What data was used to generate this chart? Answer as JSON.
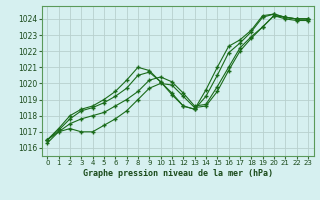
{
  "background_color": "#d6f0f0",
  "grid_color": "#b8d0ce",
  "line_color": "#1a6b1a",
  "title": "Graphe pression niveau de la mer (hPa)",
  "xlim": [
    -0.5,
    23.5
  ],
  "ylim": [
    1015.5,
    1024.8
  ],
  "yticks": [
    1016,
    1017,
    1018,
    1019,
    1020,
    1021,
    1022,
    1023,
    1024
  ],
  "xticks": [
    0,
    1,
    2,
    3,
    4,
    5,
    6,
    7,
    8,
    9,
    10,
    11,
    12,
    13,
    14,
    15,
    16,
    17,
    18,
    19,
    20,
    21,
    22,
    23
  ],
  "series1_x": [
    0,
    1,
    2,
    3,
    4,
    5,
    6,
    7,
    8,
    9,
    10,
    11,
    12,
    13,
    14,
    15,
    16,
    17,
    18,
    19,
    20,
    21,
    22,
    23
  ],
  "series1_y": [
    1016.3,
    1017.0,
    1017.2,
    1017.0,
    1017.0,
    1017.4,
    1017.8,
    1018.3,
    1019.0,
    1019.7,
    1020.0,
    1019.9,
    1019.2,
    1018.5,
    1018.6,
    1019.5,
    1020.8,
    1022.0,
    1022.8,
    1023.5,
    1024.2,
    1024.0,
    1023.9,
    1023.9
  ],
  "series2_x": [
    0,
    2,
    3,
    4,
    5,
    6,
    7,
    8,
    9,
    10,
    11,
    12,
    13,
    14,
    15,
    16,
    17,
    18,
    19,
    20,
    21,
    22,
    23
  ],
  "series2_y": [
    1016.5,
    1017.5,
    1017.8,
    1018.0,
    1018.2,
    1018.6,
    1019.0,
    1019.5,
    1020.2,
    1020.4,
    1020.1,
    1019.4,
    1018.6,
    1018.7,
    1019.8,
    1021.0,
    1022.2,
    1022.9,
    1023.5,
    1024.2,
    1024.1,
    1024.0,
    1024.0
  ],
  "series3_x": [
    0,
    1,
    2,
    3,
    4,
    5,
    6,
    7,
    8,
    9,
    10,
    11,
    12,
    13,
    14,
    15,
    16,
    17,
    18,
    19,
    20,
    21,
    22,
    23
  ],
  "series3_y": [
    1016.5,
    1017.1,
    1017.8,
    1018.3,
    1018.5,
    1018.8,
    1019.2,
    1019.7,
    1020.5,
    1020.7,
    1020.1,
    1019.3,
    1018.6,
    1018.4,
    1019.2,
    1020.5,
    1021.9,
    1022.5,
    1023.2,
    1024.1,
    1024.3,
    1024.1,
    1024.0,
    1024.0
  ],
  "series4_x": [
    0,
    1,
    2,
    3,
    4,
    5,
    6,
    7,
    8,
    9,
    10,
    11,
    12,
    13,
    14,
    15,
    16,
    17,
    18,
    19,
    20,
    21,
    22,
    23
  ],
  "series4_y": [
    1016.5,
    1017.2,
    1018.0,
    1018.4,
    1018.6,
    1019.0,
    1019.5,
    1020.2,
    1021.0,
    1020.8,
    1020.1,
    1019.4,
    1018.6,
    1018.4,
    1019.6,
    1021.0,
    1022.3,
    1022.7,
    1023.3,
    1024.2,
    1024.3,
    1024.1,
    1024.0,
    1024.0
  ]
}
